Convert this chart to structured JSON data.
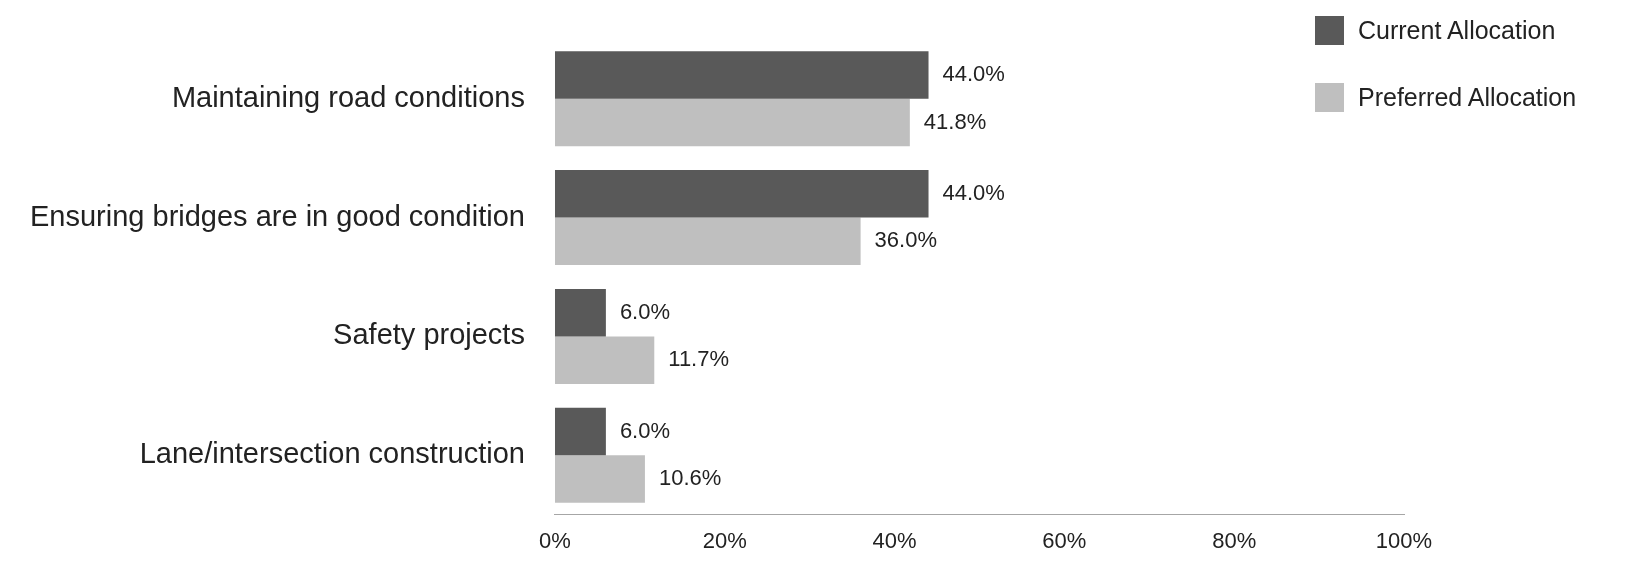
{
  "chart_data": {
    "type": "bar",
    "orientation": "horizontal",
    "categories": [
      "Maintaining road conditions",
      "Ensuring bridges are in good condition",
      "Safety projects",
      "Lane/intersection construction"
    ],
    "series": [
      {
        "name": "Current Allocation",
        "color": "#595959",
        "values": [
          44.0,
          44.0,
          6.0,
          6.0
        ],
        "value_labels": [
          "44.0%",
          "44.0%",
          "6.0%",
          "6.0%"
        ]
      },
      {
        "name": "Preferred Allocation",
        "color": "#bfbfbf",
        "values": [
          41.8,
          36.0,
          11.7,
          10.6
        ],
        "value_labels": [
          "41.8%",
          "36.0%",
          "11.7%",
          "10.6%"
        ]
      }
    ],
    "xlim": [
      0,
      100
    ],
    "xticks": [
      {
        "value": 0,
        "label": "0%"
      },
      {
        "value": 20,
        "label": "20%"
      },
      {
        "value": 40,
        "label": "40%"
      },
      {
        "value": 60,
        "label": "60%"
      },
      {
        "value": 80,
        "label": "80%"
      },
      {
        "value": 100,
        "label": "100%"
      }
    ],
    "grid": false,
    "legend": "top right"
  }
}
